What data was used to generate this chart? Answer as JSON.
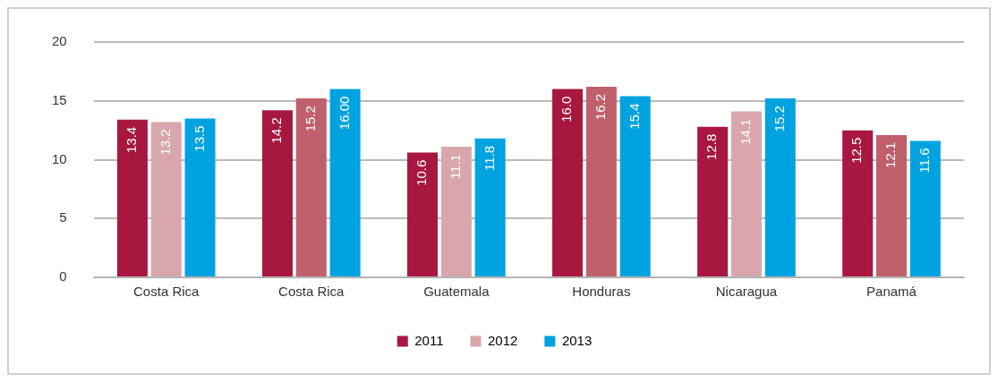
{
  "chart_data": {
    "type": "bar",
    "categories": [
      "Costa Rica",
      "Costa Rica",
      "Guatemala",
      "Honduras",
      "Nicaragua",
      "Panamá"
    ],
    "series": [
      {
        "name": "2011",
        "color": "#a8173f",
        "values": [
          13.4,
          14.2,
          10.6,
          16.0,
          12.8,
          12.5
        ],
        "value_labels": [
          "13.4",
          "14.2",
          "10.6",
          "16.0",
          "12.8",
          "12.5"
        ]
      },
      {
        "name": "2012",
        "color": "#d9a7ab",
        "colors": [
          "#d9a7ab",
          "#c0606c",
          "#d9a7ab",
          "#c0606c",
          "#d9a7ab",
          "#c0606c"
        ],
        "values": [
          13.2,
          15.2,
          11.1,
          16.2,
          14.1,
          12.1
        ],
        "value_labels": [
          "13.2",
          "15.2",
          "11.1",
          "16.2",
          "14.1",
          "12.1"
        ]
      },
      {
        "name": "2013",
        "color": "#00a3e0",
        "values": [
          13.5,
          16.0,
          11.8,
          15.4,
          15.2,
          11.6
        ],
        "value_labels": [
          "13.5",
          "16.00",
          "11.8",
          "15.4",
          "15.2",
          "11.6"
        ]
      }
    ],
    "ylim": [
      0,
      20
    ],
    "yticks": [
      0,
      5,
      10,
      15,
      20
    ],
    "grid": "y",
    "legend": "bottom"
  }
}
